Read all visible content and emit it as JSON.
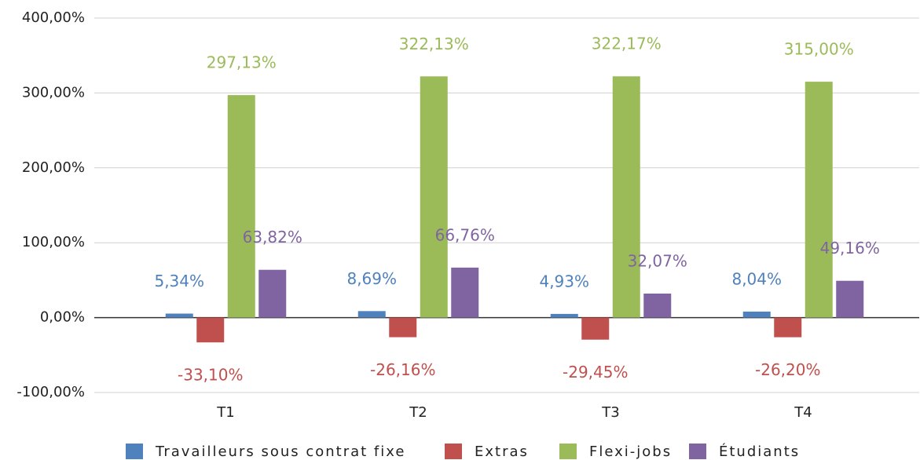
{
  "chart_data": {
    "type": "bar",
    "categories": [
      "T1",
      "T2",
      "T3",
      "T4"
    ],
    "series": [
      {
        "name": "Travailleurs sous contrat fixe",
        "color": "#4f81bd",
        "values": [
          5.34,
          8.69,
          4.93,
          8.04
        ],
        "value_labels": [
          "5,34%",
          "8,69%",
          "4,93%",
          "8,04%"
        ]
      },
      {
        "name": "Extras",
        "color": "#c0504d",
        "values": [
          -33.1,
          -26.16,
          -29.45,
          -26.2
        ],
        "value_labels": [
          "-33,10%",
          "-26,16%",
          "-29,45%",
          "-26,20%"
        ]
      },
      {
        "name": "Flexi-jobs",
        "color": "#9bbb59",
        "values": [
          297.13,
          322.13,
          322.17,
          315.0
        ],
        "value_labels": [
          "297,13%",
          "322,13%",
          "322,17%",
          "315,00%"
        ]
      },
      {
        "name": "Étudiants",
        "color": "#8064a2",
        "values": [
          63.82,
          66.76,
          32.07,
          49.16
        ],
        "value_labels": [
          "63,82%",
          "66,76%",
          "32,07%",
          "49,16%"
        ]
      }
    ],
    "ylim": [
      -100,
      400
    ],
    "yticks": [
      {
        "value": -100,
        "label": "-100,00%"
      },
      {
        "value": 0,
        "label": "0,00%"
      },
      {
        "value": 100,
        "label": "100,00%"
      },
      {
        "value": 200,
        "label": "200,00%"
      },
      {
        "value": 300,
        "label": "300,00%"
      },
      {
        "value": 400,
        "label": "400,00%"
      }
    ],
    "grid": true,
    "legend": "bottom"
  }
}
